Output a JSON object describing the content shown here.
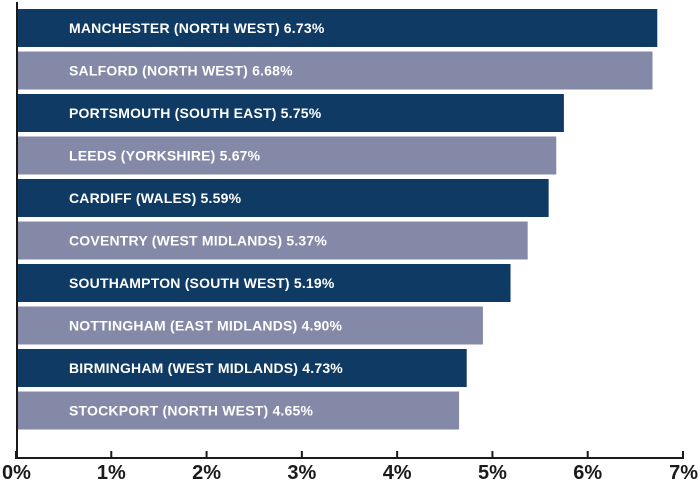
{
  "chart_data": {
    "type": "bar",
    "orientation": "horizontal",
    "categories": [
      "MANCHESTER (NORTH WEST)",
      "SALFORD (NORTH WEST)",
      "PORTSMOUTH (SOUTH EAST)",
      "LEEDS (YORKSHIRE)",
      "CARDIFF (WALES)",
      "COVENTRY (WEST MIDLANDS)",
      "SOUTHAMPTON (SOUTH WEST)",
      "NOTTINGHAM (EAST MIDLANDS)",
      "BIRMINGHAM (WEST MIDLANDS)",
      "STOCKPORT (NORTH WEST)"
    ],
    "values": [
      6.73,
      6.68,
      5.75,
      5.67,
      5.59,
      5.37,
      5.19,
      4.9,
      4.73,
      4.65
    ],
    "data_labels": [
      "MANCHESTER (NORTH WEST) 6.73%",
      "SALFORD (NORTH WEST) 6.68%",
      "PORTSMOUTH (SOUTH EAST) 5.75%",
      "LEEDS (YORKSHIRE) 5.67%",
      "CARDIFF (WALES) 5.59%",
      "COVENTRY (WEST MIDLANDS) 5.37%",
      "SOUTHAMPTON (SOUTH WEST) 5.19%",
      "NOTTINGHAM (EAST MIDLANDS) 4.90%",
      "BIRMINGHAM (WEST MIDLANDS) 4.73%",
      "STOCKPORT (NORTH WEST) 4.65%"
    ],
    "xlim": [
      0,
      7
    ],
    "x_ticks": [
      "0%",
      "1%",
      "2%",
      "3%",
      "4%",
      "5%",
      "6%",
      "7%"
    ],
    "title": "",
    "xlabel": "",
    "ylabel": "",
    "grid": false,
    "colors": {
      "dark": "#0f3a63",
      "light": "#8489a7",
      "axis": "#1a1a1a",
      "label_text": "#ffffff"
    }
  }
}
